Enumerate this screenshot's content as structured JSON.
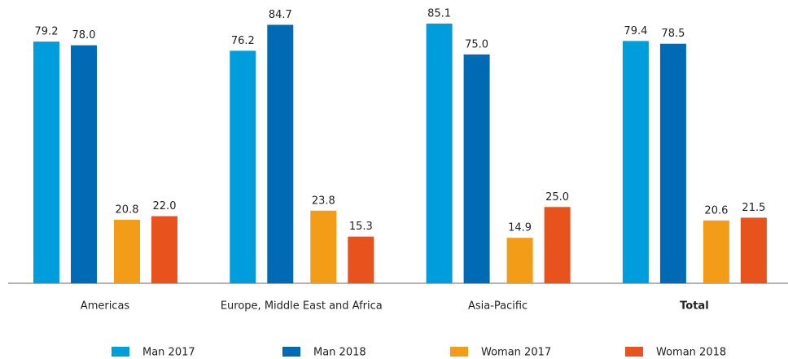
{
  "chart_data": {
    "type": "bar",
    "categories": [
      "Americas",
      "Europe, Middle East and Africa",
      "Asia-Pacific",
      "Total"
    ],
    "series": [
      {
        "name": "Man 2017",
        "color": "#009ddc",
        "values": [
          79.2,
          76.2,
          85.1,
          79.4
        ],
        "value_labels": [
          "79.2",
          "76.2",
          "85.1",
          "79.4"
        ]
      },
      {
        "name": "Man 2018",
        "color": "#006ab4",
        "values": [
          78.0,
          84.7,
          75.0,
          78.5
        ],
        "value_labels": [
          "78.0",
          "84.7",
          "75.0",
          "78.5"
        ]
      },
      {
        "name": "Woman 2017",
        "color": "#f39c18",
        "values": [
          20.8,
          23.8,
          14.9,
          20.6
        ],
        "value_labels": [
          "20.8",
          "23.8",
          "14.9",
          "20.6"
        ]
      },
      {
        "name": "Woman 2018",
        "color": "#e8521c",
        "values": [
          22.0,
          15.3,
          25.0,
          21.5
        ],
        "value_labels": [
          "22.0",
          "15.3",
          "25.0",
          "21.5"
        ]
      }
    ]
  }
}
